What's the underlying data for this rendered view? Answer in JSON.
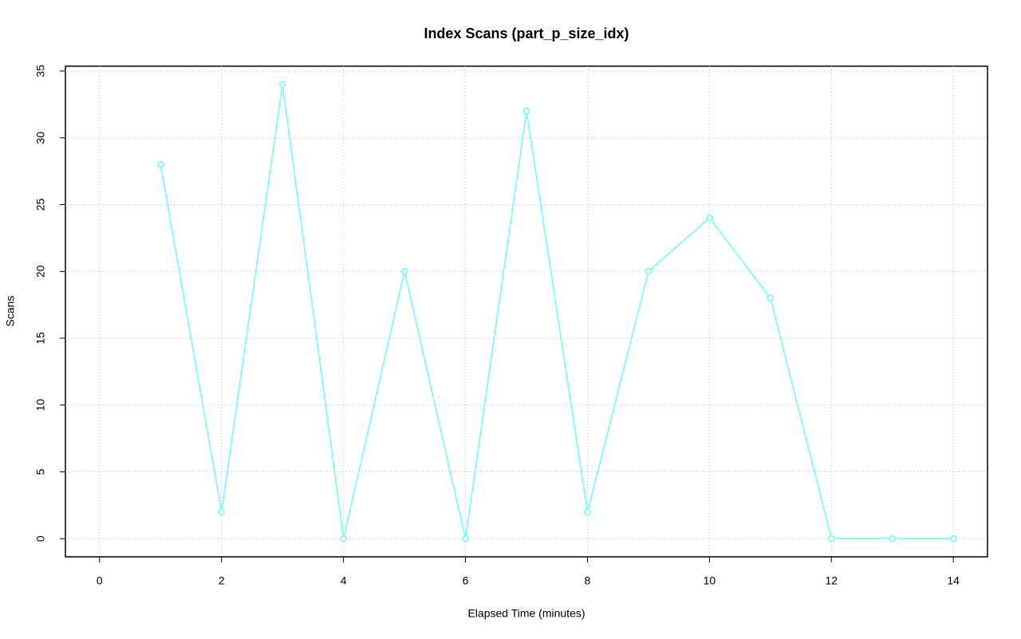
{
  "chart_data": {
    "type": "line",
    "title": "Index Scans (part_p_size_idx)",
    "x_label": "Elapsed Time (minutes)",
    "y_label": "Scans",
    "x": [
      1,
      2,
      3,
      4,
      5,
      6,
      7,
      8,
      9,
      10,
      11,
      12,
      13,
      14
    ],
    "series": [
      {
        "name": "part_p_size_idx",
        "color": "#66ffff",
        "values": [
          28,
          2,
          34,
          0,
          20,
          0,
          32,
          2,
          20,
          24,
          18,
          0,
          0,
          0
        ]
      }
    ],
    "xlim": [
      -0.56,
      14.56
    ],
    "xticks": [
      0,
      2,
      4,
      6,
      8,
      10,
      12,
      14
    ],
    "ylim": [
      -1.36,
      35.36
    ],
    "yticks": [
      0,
      5,
      10,
      15,
      20,
      25,
      30,
      35
    ],
    "grid": true
  }
}
